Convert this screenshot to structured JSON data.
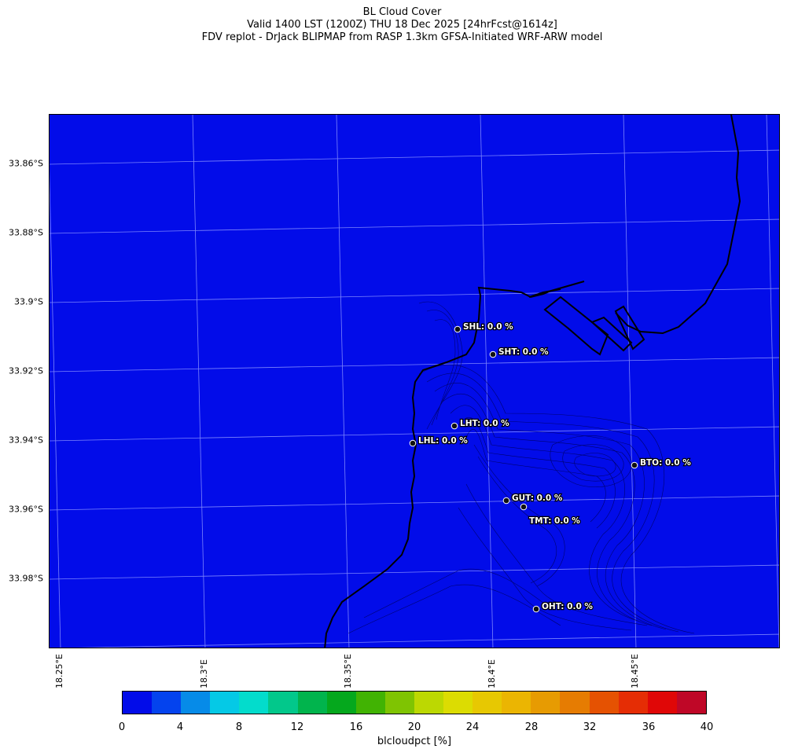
{
  "title": {
    "line1": "BL Cloud Cover",
    "line2": "Valid 1400 LST (1200Z) THU 18 Dec 2025 [24hrFcst@1614z]",
    "line3": "FDV replot - DrJack BLIPMAP from RASP 1.3km GFSA-Initiated WRF-ARW model"
  },
  "map": {
    "fill_color": "#020ce9",
    "lat_labels": [
      "33.86°S",
      "33.88°S",
      "33.9°S",
      "33.92°S",
      "33.94°S",
      "33.96°S",
      "33.98°S"
    ],
    "lon_labels": [
      "18.25°E",
      "18.3°E",
      "18.35°E",
      "18.4°E",
      "18.45°E"
    ],
    "stations": [
      {
        "id": "SHL",
        "label": "SHL: 0.0 %",
        "value": 0.0
      },
      {
        "id": "SHT",
        "label": "SHT: 0.0 %",
        "value": 0.0
      },
      {
        "id": "LHT",
        "label": "LHT: 0.0 %",
        "value": 0.0
      },
      {
        "id": "LHL",
        "label": "LHL: 0.0 %",
        "value": 0.0
      },
      {
        "id": "BTO",
        "label": "BTO: 0.0 %",
        "value": 0.0
      },
      {
        "id": "GUT",
        "label": "GUT: 0.0 %",
        "value": 0.0
      },
      {
        "id": "TMT",
        "label": "TMT: 0.0 %",
        "value": 0.0
      },
      {
        "id": "OHT",
        "label": "OHT: 0.0 %",
        "value": 0.0
      }
    ]
  },
  "colorbar": {
    "label": "blcloudpct [%]",
    "ticks": [
      "0",
      "4",
      "8",
      "12",
      "16",
      "20",
      "24",
      "28",
      "32",
      "36",
      "40"
    ],
    "colors": [
      "#020ce9",
      "#0443ee",
      "#068be8",
      "#05c9e6",
      "#03dccc",
      "#02c88b",
      "#01b44d",
      "#05a81d",
      "#41b303",
      "#7fc402",
      "#bcd802",
      "#dcdc02",
      "#e7c802",
      "#ebb502",
      "#e79b02",
      "#e67c02",
      "#e55202",
      "#e52d05",
      "#e00707",
      "#bf0727"
    ]
  }
}
